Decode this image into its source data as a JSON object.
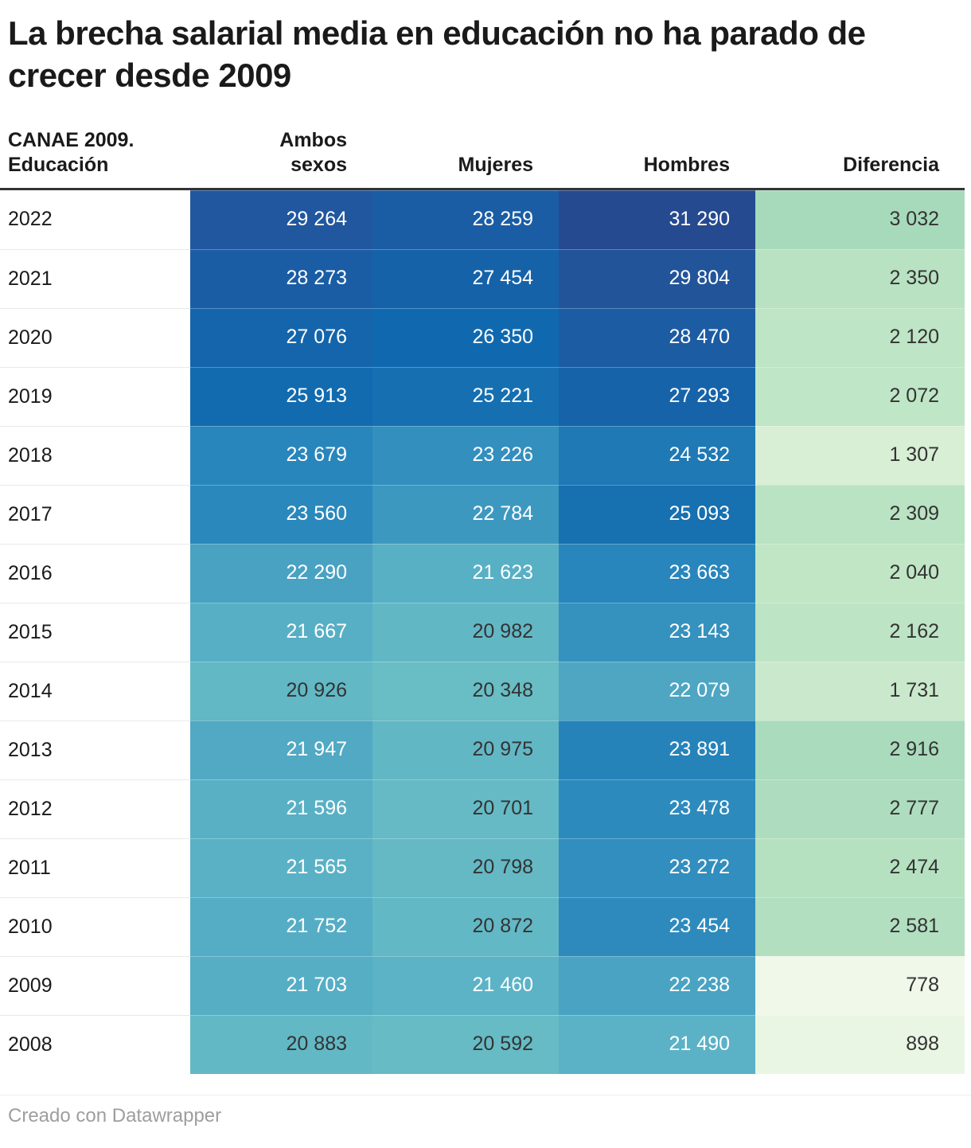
{
  "title": "La brecha salarial media en educación no ha parado de crecer desde 2009",
  "footer": "Creado con Datawrapper",
  "colors": {
    "header_rule": "#333333",
    "white_text": "#ffffff",
    "dark_text": "#333333",
    "row_separator": "#e9e9e9",
    "footer_text": "#9e9e9e",
    "title_text": "#1a1a1a"
  },
  "table": {
    "columns": [
      {
        "label": "CANAE 2009. Educación"
      },
      {
        "label": "Ambos sexos"
      },
      {
        "label": "Mujeres"
      },
      {
        "label": "Hombres"
      },
      {
        "label": "Diferencia"
      }
    ],
    "rows": [
      {
        "year": "2022",
        "cells": [
          {
            "value": "29 264",
            "bg": "#21579E",
            "text": "#ffffff"
          },
          {
            "value": "28 259",
            "bg": "#1B5DA4",
            "text": "#ffffff"
          },
          {
            "value": "31 290",
            "bg": "#254A8F",
            "text": "#ffffff"
          },
          {
            "value": "3 032",
            "bg": "#A7DABB",
            "text": "#333333"
          }
        ]
      },
      {
        "year": "2021",
        "cells": [
          {
            "value": "28 273",
            "bg": "#1B5DA4",
            "text": "#ffffff"
          },
          {
            "value": "27 454",
            "bg": "#1662A9",
            "text": "#ffffff"
          },
          {
            "value": "29 804",
            "bg": "#22549A",
            "text": "#ffffff"
          },
          {
            "value": "2 350",
            "bg": "#B8E2C2",
            "text": "#333333"
          }
        ]
      },
      {
        "year": "2020",
        "cells": [
          {
            "value": "27 076",
            "bg": "#1465AB",
            "text": "#ffffff"
          },
          {
            "value": "26 350",
            "bg": "#1069AF",
            "text": "#ffffff"
          },
          {
            "value": "28 470",
            "bg": "#1C5CA3",
            "text": "#ffffff"
          },
          {
            "value": "2 120",
            "bg": "#BEE5C5",
            "text": "#333333"
          }
        ]
      },
      {
        "year": "2019",
        "cells": [
          {
            "value": "25 913",
            "bg": "#126BAF",
            "text": "#ffffff"
          },
          {
            "value": "25 221",
            "bg": "#166FB0",
            "text": "#ffffff"
          },
          {
            "value": "27 293",
            "bg": "#1663A9",
            "text": "#ffffff"
          },
          {
            "value": "2 072",
            "bg": "#BFE6C6",
            "text": "#333333"
          }
        ]
      },
      {
        "year": "2018",
        "cells": [
          {
            "value": "23 679",
            "bg": "#2986BC",
            "text": "#ffffff"
          },
          {
            "value": "23 226",
            "bg": "#338FBE",
            "text": "#ffffff"
          },
          {
            "value": "24 532",
            "bg": "#1E79B5",
            "text": "#ffffff"
          },
          {
            "value": "1 307",
            "bg": "#D8EED5",
            "text": "#333333"
          }
        ]
      },
      {
        "year": "2017",
        "cells": [
          {
            "value": "23 560",
            "bg": "#2B88BC",
            "text": "#ffffff"
          },
          {
            "value": "22 784",
            "bg": "#3D98C0",
            "text": "#ffffff"
          },
          {
            "value": "25 093",
            "bg": "#1770B0",
            "text": "#ffffff"
          },
          {
            "value": "2 309",
            "bg": "#B9E3C3",
            "text": "#333333"
          }
        ]
      },
      {
        "year": "2016",
        "cells": [
          {
            "value": "22 290",
            "bg": "#49A2C2",
            "text": "#ffffff"
          },
          {
            "value": "21 623",
            "bg": "#58B0C5",
            "text": "#ffffff"
          },
          {
            "value": "23 663",
            "bg": "#2986BC",
            "text": "#ffffff"
          },
          {
            "value": "2 040",
            "bg": "#C0E6C6",
            "text": "#333333"
          }
        ]
      },
      {
        "year": "2015",
        "cells": [
          {
            "value": "21 667",
            "bg": "#57AFC5",
            "text": "#ffffff"
          },
          {
            "value": "20 982",
            "bg": "#62B7C5",
            "text": "#333333"
          },
          {
            "value": "23 143",
            "bg": "#3591BE",
            "text": "#ffffff"
          },
          {
            "value": "2 162",
            "bg": "#BDE4C5",
            "text": "#333333"
          }
        ]
      },
      {
        "year": "2014",
        "cells": [
          {
            "value": "20 926",
            "bg": "#62B8C5",
            "text": "#333333"
          },
          {
            "value": "20 348",
            "bg": "#69BDC4",
            "text": "#333333"
          },
          {
            "value": "22 079",
            "bg": "#4EA6C3",
            "text": "#ffffff"
          },
          {
            "value": "1 731",
            "bg": "#CAE9CC",
            "text": "#333333"
          }
        ]
      },
      {
        "year": "2013",
        "cells": [
          {
            "value": "21 947",
            "bg": "#51A9C4",
            "text": "#ffffff"
          },
          {
            "value": "20 975",
            "bg": "#62B7C5",
            "text": "#333333"
          },
          {
            "value": "23 891",
            "bg": "#2683BA",
            "text": "#ffffff"
          },
          {
            "value": "2 916",
            "bg": "#A9DBBC",
            "text": "#333333"
          }
        ]
      },
      {
        "year": "2012",
        "cells": [
          {
            "value": "21 596",
            "bg": "#59B0C5",
            "text": "#ffffff"
          },
          {
            "value": "20 701",
            "bg": "#65BAC5",
            "text": "#333333"
          },
          {
            "value": "23 478",
            "bg": "#2D8ABD",
            "text": "#ffffff"
          },
          {
            "value": "2 777",
            "bg": "#ADDDBE",
            "text": "#333333"
          }
        ]
      },
      {
        "year": "2011",
        "cells": [
          {
            "value": "21 565",
            "bg": "#5AB1C6",
            "text": "#ffffff"
          },
          {
            "value": "20 798",
            "bg": "#64B9C5",
            "text": "#333333"
          },
          {
            "value": "23 272",
            "bg": "#328EBE",
            "text": "#ffffff"
          },
          {
            "value": "2 474",
            "bg": "#B5E1C1",
            "text": "#333333"
          }
        ]
      },
      {
        "year": "2010",
        "cells": [
          {
            "value": "21 752",
            "bg": "#55ADC5",
            "text": "#ffffff"
          },
          {
            "value": "20 872",
            "bg": "#63B8C5",
            "text": "#333333"
          },
          {
            "value": "23 454",
            "bg": "#2E8ABD",
            "text": "#ffffff"
          },
          {
            "value": "2 581",
            "bg": "#B2DFC0",
            "text": "#333333"
          }
        ]
      },
      {
        "year": "2009",
        "cells": [
          {
            "value": "21 703",
            "bg": "#56AEC5",
            "text": "#ffffff"
          },
          {
            "value": "21 460",
            "bg": "#5CB3C6",
            "text": "#ffffff"
          },
          {
            "value": "22 238",
            "bg": "#4AA3C2",
            "text": "#ffffff"
          },
          {
            "value": "778",
            "bg": "#EFF8E9",
            "text": "#333333"
          }
        ]
      },
      {
        "year": "2008",
        "cells": [
          {
            "value": "20 883",
            "bg": "#63B8C5",
            "text": "#333333"
          },
          {
            "value": "20 592",
            "bg": "#66BBC4",
            "text": "#333333"
          },
          {
            "value": "21 490",
            "bg": "#5BB2C6",
            "text": "#ffffff"
          },
          {
            "value": "898",
            "bg": "#EAF6E4",
            "text": "#333333"
          }
        ]
      }
    ]
  },
  "chart_data": {
    "type": "table",
    "title": "La brecha salarial media en educación no ha parado de crecer desde 2009",
    "columns": [
      "CANAE 2009. Educación",
      "Ambos sexos",
      "Mujeres",
      "Hombres",
      "Diferencia"
    ],
    "rows": [
      [
        2022,
        29264,
        28259,
        31290,
        3032
      ],
      [
        2021,
        28273,
        27454,
        29804,
        2350
      ],
      [
        2020,
        27076,
        26350,
        28470,
        2120
      ],
      [
        2019,
        25913,
        25221,
        27293,
        2072
      ],
      [
        2018,
        23679,
        23226,
        24532,
        1307
      ],
      [
        2017,
        23560,
        22784,
        25093,
        2309
      ],
      [
        2016,
        22290,
        21623,
        23663,
        2040
      ],
      [
        2015,
        21667,
        20982,
        23143,
        2162
      ],
      [
        2014,
        20926,
        20348,
        22079,
        1731
      ],
      [
        2013,
        21947,
        20975,
        23891,
        2916
      ],
      [
        2012,
        21596,
        20701,
        23478,
        2777
      ],
      [
        2011,
        21565,
        20798,
        23272,
        2474
      ],
      [
        2010,
        21752,
        20872,
        23454,
        2581
      ],
      [
        2009,
        21703,
        21460,
        22238,
        778
      ],
      [
        2008,
        20883,
        20592,
        21490,
        898
      ]
    ],
    "heatmap": {
      "salary_scale": "teal (#69BDC4) → blue (#1069AF) → navy (#254A8F), low → high",
      "difference_scale": "pale green (#EFF8E9) → medium green (#A7DABB), low → high"
    },
    "notes": "Creado con Datawrapper"
  }
}
